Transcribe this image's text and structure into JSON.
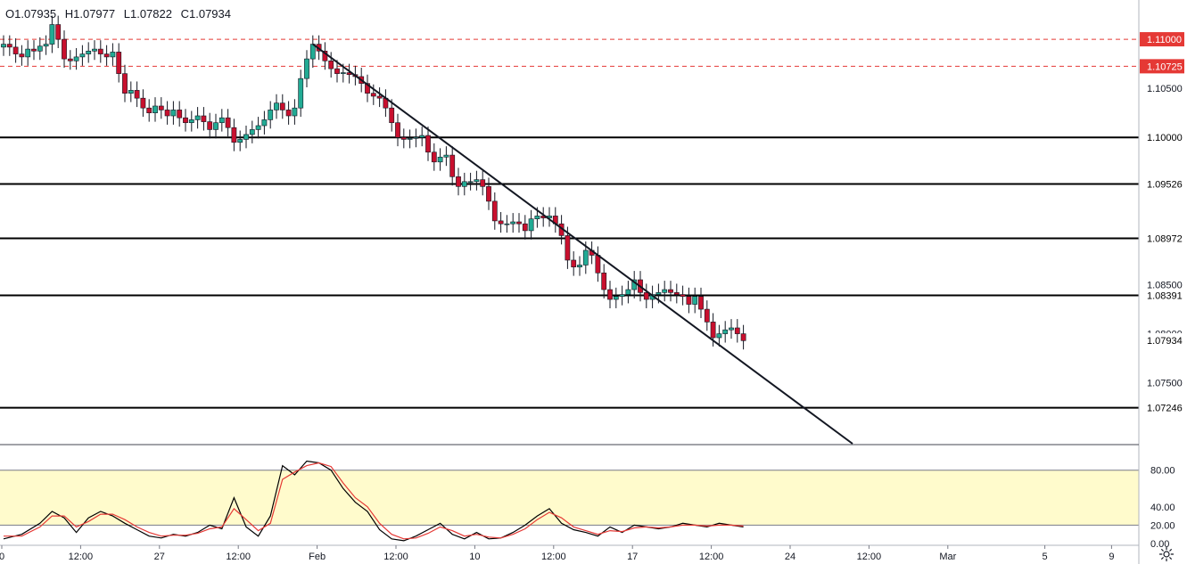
{
  "ohlc": {
    "open": "O1.07935",
    "high": "H1.07977",
    "low": "L1.07822",
    "close": "C1.07934"
  },
  "colors": {
    "up": "#26a69a",
    "down": "#ef5350",
    "up_candle": "#22ab94",
    "down_candle": "#c8102e",
    "resistance": "#e53935",
    "level_line": "#000000",
    "stoch_band": "#fffbcc",
    "stoch_k": "#000000",
    "stoch_d": "#e53935"
  },
  "icons": {
    "settings": "gear-icon"
  },
  "chart_data": [
    {
      "type": "candlestick",
      "ylim": [
        1.0688,
        1.114
      ],
      "price_labels": [
        {
          "value": 1.105,
          "text": "1.10500"
        },
        {
          "value": 1.085,
          "text": "1.08500"
        },
        {
          "value": 1.08,
          "text": "1.08000"
        },
        {
          "value": 1.075,
          "text": "1.07500"
        }
      ],
      "dashed_levels": [
        {
          "value": 1.11,
          "text": "1.11000"
        },
        {
          "value": 1.10725,
          "text": "1.10725"
        }
      ],
      "solid_levels": [
        {
          "value": 1.1,
          "text": "1.10000"
        },
        {
          "value": 1.09526,
          "text": "1.09526"
        },
        {
          "value": 1.08972,
          "text": "1.08972"
        },
        {
          "value": 1.08391,
          "text": "1.08391"
        },
        {
          "value": 1.07246,
          "text": "1.07246"
        }
      ],
      "last_price": {
        "value": 1.07934,
        "text": "1.07934"
      },
      "trendline": {
        "start": [
          51,
          1.1095
        ],
        "end": [
          140,
          1.0688
        ]
      },
      "x_ticks": [
        {
          "bar": 0,
          "label": "0"
        },
        {
          "bar": 13,
          "label": "12:00"
        },
        {
          "bar": 26,
          "label": "27"
        },
        {
          "bar": 39,
          "label": "12:00"
        },
        {
          "bar": 52,
          "label": "Feb"
        },
        {
          "bar": 65,
          "label": "12:00"
        },
        {
          "bar": 78,
          "label": "10"
        },
        {
          "bar": 91,
          "label": "12:00"
        },
        {
          "bar": 104,
          "label": "17"
        },
        {
          "bar": 117,
          "label": "12:00"
        },
        {
          "bar": 130,
          "label": "24"
        },
        {
          "bar": 143,
          "label": "12:00"
        },
        {
          "bar": 156,
          "label": "Mar"
        },
        {
          "bar": 172,
          "label": "5"
        },
        {
          "bar": 183,
          "label": "9"
        }
      ],
      "closes": [
        1.1095,
        1.1092,
        1.1085,
        1.1082,
        1.109,
        1.1088,
        1.1093,
        1.1095,
        1.1115,
        1.11,
        1.108,
        1.1078,
        1.1082,
        1.1085,
        1.1088,
        1.109,
        1.1085,
        1.1082,
        1.1087,
        1.1065,
        1.1045,
        1.1048,
        1.104,
        1.103,
        1.1025,
        1.1032,
        1.1028,
        1.1022,
        1.1028,
        1.102,
        1.1015,
        1.1018,
        1.1022,
        1.1016,
        1.1008,
        1.1015,
        1.102,
        1.101,
        1.0995,
        1.0998,
        1.1003,
        1.1008,
        1.1012,
        1.1018,
        1.1028,
        1.1035,
        1.1028,
        1.1022,
        1.103,
        1.106,
        1.108,
        1.1095,
        1.1088,
        1.1078,
        1.107,
        1.1065,
        1.1066,
        1.1064,
        1.1062,
        1.1055,
        1.1045,
        1.1042,
        1.104,
        1.103,
        1.1015,
        1.1,
        1.0998,
        1.0999,
        1.1,
        1.1002,
        1.0985,
        1.0975,
        1.098,
        1.0982,
        1.096,
        1.095,
        1.0955,
        1.0955,
        1.0957,
        1.095,
        1.0935,
        1.0915,
        1.0912,
        1.0912,
        1.0914,
        1.0912,
        1.0905,
        1.0917,
        1.092,
        1.0918,
        1.092,
        1.0912,
        1.09,
        1.0875,
        1.0868,
        1.087,
        1.0885,
        1.088,
        1.0862,
        1.0845,
        1.0835,
        1.0838,
        1.084,
        1.0845,
        1.0855,
        1.0842,
        1.0835,
        1.084,
        1.0842,
        1.0845,
        1.0842,
        1.084,
        1.0838,
        1.083,
        1.0838,
        1.0825,
        1.0812,
        1.0796,
        1.08,
        1.0804,
        1.0806,
        1.08,
        1.0793
      ],
      "opens": [
        1.1092,
        1.1095,
        1.1092,
        1.1085,
        1.1082,
        1.109,
        1.1088,
        1.1093,
        1.1095,
        1.1115,
        1.11,
        1.108,
        1.1078,
        1.1082,
        1.1085,
        1.1088,
        1.109,
        1.1085,
        1.1082,
        1.1087,
        1.1065,
        1.1045,
        1.1048,
        1.104,
        1.103,
        1.1025,
        1.1032,
        1.1028,
        1.1022,
        1.1028,
        1.102,
        1.1015,
        1.1018,
        1.1022,
        1.1016,
        1.1008,
        1.1015,
        1.102,
        1.101,
        1.0995,
        1.0998,
        1.1003,
        1.1008,
        1.1012,
        1.1018,
        1.1028,
        1.1035,
        1.1028,
        1.1022,
        1.103,
        1.106,
        1.108,
        1.1095,
        1.1088,
        1.1078,
        1.107,
        1.1065,
        1.1066,
        1.1064,
        1.1062,
        1.1055,
        1.1045,
        1.1042,
        1.104,
        1.103,
        1.1015,
        1.1,
        1.0998,
        1.0999,
        1.1,
        1.1002,
        1.0985,
        1.0975,
        1.098,
        1.0982,
        1.096,
        1.095,
        1.0955,
        1.0955,
        1.0957,
        1.095,
        1.0935,
        1.0915,
        1.0912,
        1.0912,
        1.0914,
        1.0912,
        1.0905,
        1.0917,
        1.092,
        1.0918,
        1.092,
        1.0912,
        1.09,
        1.0875,
        1.0868,
        1.087,
        1.0885,
        1.088,
        1.0862,
        1.0845,
        1.0835,
        1.0838,
        1.084,
        1.0845,
        1.0855,
        1.0842,
        1.0835,
        1.084,
        1.0842,
        1.0845,
        1.0842,
        1.084,
        1.0838,
        1.083,
        1.0838,
        1.0825,
        1.0812,
        1.0796,
        1.08,
        1.0804,
        1.0806,
        1.08
      ]
    },
    {
      "type": "line",
      "name": "stochastic",
      "ylim": [
        -2,
        107
      ],
      "band": [
        20,
        80
      ],
      "y_labels": [
        {
          "value": 80,
          "text": "80.00"
        },
        {
          "value": 40,
          "text": "40.00"
        },
        {
          "value": 20,
          "text": "20.00"
        },
        {
          "value": 0,
          "text": "0.00"
        }
      ],
      "k": [
        [
          0,
          5
        ],
        [
          3,
          10
        ],
        [
          6,
          22
        ],
        [
          8,
          35
        ],
        [
          10,
          28
        ],
        [
          12,
          12
        ],
        [
          14,
          28
        ],
        [
          16,
          35
        ],
        [
          18,
          30
        ],
        [
          20,
          22
        ],
        [
          22,
          15
        ],
        [
          24,
          8
        ],
        [
          26,
          6
        ],
        [
          28,
          10
        ],
        [
          30,
          8
        ],
        [
          32,
          12
        ],
        [
          34,
          20
        ],
        [
          36,
          16
        ],
        [
          38,
          50
        ],
        [
          40,
          18
        ],
        [
          42,
          8
        ],
        [
          44,
          30
        ],
        [
          46,
          85
        ],
        [
          48,
          75
        ],
        [
          50,
          90
        ],
        [
          52,
          88
        ],
        [
          54,
          80
        ],
        [
          56,
          60
        ],
        [
          58,
          45
        ],
        [
          60,
          35
        ],
        [
          62,
          15
        ],
        [
          64,
          5
        ],
        [
          66,
          3
        ],
        [
          68,
          8
        ],
        [
          70,
          15
        ],
        [
          72,
          22
        ],
        [
          74,
          10
        ],
        [
          76,
          5
        ],
        [
          78,
          12
        ],
        [
          80,
          5
        ],
        [
          82,
          6
        ],
        [
          84,
          12
        ],
        [
          86,
          20
        ],
        [
          88,
          30
        ],
        [
          90,
          38
        ],
        [
          92,
          22
        ],
        [
          94,
          15
        ],
        [
          96,
          12
        ],
        [
          98,
          8
        ],
        [
          100,
          18
        ],
        [
          102,
          12
        ],
        [
          104,
          20
        ],
        [
          106,
          18
        ],
        [
          108,
          16
        ],
        [
          110,
          18
        ],
        [
          112,
          22
        ],
        [
          114,
          20
        ],
        [
          116,
          18
        ],
        [
          118,
          22
        ],
        [
          120,
          20
        ],
        [
          122,
          18
        ]
      ],
      "d": [
        [
          0,
          8
        ],
        [
          3,
          8
        ],
        [
          6,
          18
        ],
        [
          8,
          30
        ],
        [
          10,
          30
        ],
        [
          12,
          18
        ],
        [
          14,
          24
        ],
        [
          16,
          32
        ],
        [
          18,
          32
        ],
        [
          20,
          26
        ],
        [
          22,
          18
        ],
        [
          24,
          12
        ],
        [
          26,
          8
        ],
        [
          28,
          9
        ],
        [
          30,
          9
        ],
        [
          32,
          11
        ],
        [
          34,
          16
        ],
        [
          36,
          18
        ],
        [
          38,
          38
        ],
        [
          40,
          26
        ],
        [
          42,
          14
        ],
        [
          44,
          22
        ],
        [
          46,
          70
        ],
        [
          48,
          78
        ],
        [
          50,
          85
        ],
        [
          52,
          88
        ],
        [
          54,
          84
        ],
        [
          56,
          66
        ],
        [
          58,
          50
        ],
        [
          60,
          40
        ],
        [
          62,
          22
        ],
        [
          64,
          10
        ],
        [
          66,
          5
        ],
        [
          68,
          6
        ],
        [
          70,
          11
        ],
        [
          72,
          18
        ],
        [
          74,
          14
        ],
        [
          76,
          8
        ],
        [
          78,
          10
        ],
        [
          80,
          7
        ],
        [
          82,
          6
        ],
        [
          84,
          10
        ],
        [
          86,
          16
        ],
        [
          88,
          26
        ],
        [
          90,
          34
        ],
        [
          92,
          28
        ],
        [
          94,
          18
        ],
        [
          96,
          14
        ],
        [
          98,
          10
        ],
        [
          100,
          14
        ],
        [
          102,
          13
        ],
        [
          104,
          17
        ],
        [
          106,
          18
        ],
        [
          108,
          17
        ],
        [
          110,
          18
        ],
        [
          112,
          20
        ],
        [
          114,
          20
        ],
        [
          116,
          19
        ],
        [
          118,
          20
        ],
        [
          120,
          20
        ],
        [
          122,
          19
        ]
      ]
    }
  ]
}
